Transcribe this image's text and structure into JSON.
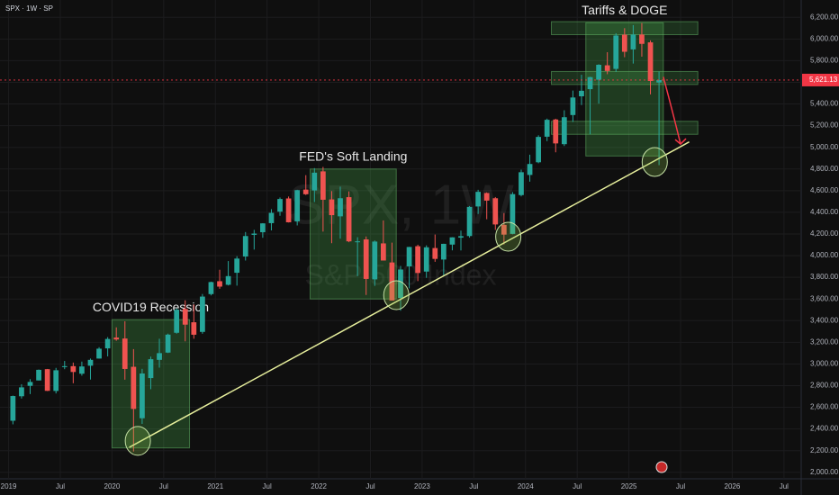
{
  "chart_data": {
    "type": "candlestick",
    "title": "SPX · 1W · SP",
    "watermark": "SPX, 1W",
    "watermark_subtitle": "S&P 500 Index",
    "x": [
      "2019-01",
      "2019-02",
      "2019-03",
      "2019-04",
      "2019-05",
      "2019-06",
      "2019-07",
      "2019-08",
      "2019-09",
      "2019-10",
      "2019-11",
      "2019-12",
      "2020-01",
      "2020-02",
      "2020-03",
      "2020-04",
      "2020-05",
      "2020-06",
      "2020-07",
      "2020-08",
      "2020-09",
      "2020-10",
      "2020-11",
      "2020-12",
      "2021-01",
      "2021-02",
      "2021-03",
      "2021-04",
      "2021-05",
      "2021-06",
      "2021-07",
      "2021-08",
      "2021-09",
      "2021-10",
      "2021-11",
      "2021-12",
      "2022-01",
      "2022-02",
      "2022-03",
      "2022-04",
      "2022-05",
      "2022-06",
      "2022-07",
      "2022-08",
      "2022-09",
      "2022-10",
      "2022-11",
      "2022-12",
      "2023-01",
      "2023-02",
      "2023-03",
      "2023-04",
      "2023-05",
      "2023-06",
      "2023-07",
      "2023-08",
      "2023-09",
      "2023-10",
      "2023-11",
      "2023-12",
      "2024-01",
      "2024-02",
      "2024-03",
      "2024-04",
      "2024-05",
      "2024-06",
      "2024-07",
      "2024-08",
      "2024-09",
      "2024-10",
      "2024-11",
      "2024-12",
      "2025-01",
      "2025-02",
      "2025-03",
      "2025-04"
    ],
    "open": [
      2476,
      2702,
      2798,
      2848,
      2952,
      2751,
      2971,
      2980,
      2910,
      2984,
      3050,
      3144,
      3244,
      3235,
      2974,
      2499,
      2870,
      3038,
      3105,
      3288,
      3508,
      3385,
      3296,
      3645,
      3764,
      3731,
      3842,
      3992,
      4192,
      4216,
      4300,
      4406,
      4528,
      4317,
      4610,
      4602,
      4778,
      4519,
      4363,
      4540,
      4130,
      4150,
      3781,
      4113,
      3937,
      3609,
      3901,
      4087,
      3853,
      4070,
      3964,
      4102,
      4166,
      4181,
      4454,
      4578,
      4530,
      4284,
      4201,
      4559,
      4745,
      4862,
      5098,
      5257,
      5029,
      5298,
      5471,
      5537,
      5624,
      5757,
      5724,
      6040,
      5904,
      6041,
      5969,
      5598
    ],
    "high": [
      2708,
      2813,
      2860,
      2949,
      2954,
      2964,
      3028,
      3013,
      3022,
      3050,
      3155,
      3248,
      3338,
      3394,
      3137,
      2955,
      3068,
      3233,
      3280,
      3514,
      3588,
      3550,
      3646,
      3760,
      3870,
      3950,
      3995,
      4218,
      4238,
      4300,
      4429,
      4537,
      4546,
      4608,
      4743,
      4808,
      4819,
      4596,
      4637,
      4593,
      4170,
      4177,
      4140,
      4325,
      4120,
      3905,
      4081,
      4101,
      4095,
      4195,
      4110,
      4170,
      4231,
      4458,
      4608,
      4584,
      4541,
      4393,
      4587,
      4794,
      4932,
      5111,
      5265,
      5264,
      5342,
      5524,
      5670,
      5651,
      5767,
      5878,
      6053,
      6100,
      6128,
      6147,
      5987,
      5700
    ],
    "low": [
      2443,
      2681,
      2722,
      2848,
      2750,
      2728,
      2952,
      2822,
      2892,
      2856,
      3050,
      3070,
      3214,
      2855,
      2192,
      2447,
      2767,
      2966,
      3101,
      3280,
      3209,
      3233,
      3279,
      3633,
      3694,
      3725,
      3723,
      3955,
      4056,
      4165,
      4233,
      4368,
      4306,
      4279,
      4560,
      4495,
      4222,
      4115,
      4157,
      4124,
      3811,
      3637,
      3721,
      3955,
      3585,
      3492,
      3698,
      3765,
      3795,
      3943,
      3809,
      4049,
      4048,
      4166,
      4385,
      4336,
      4238,
      4104,
      4197,
      4547,
      4683,
      4853,
      5057,
      4954,
      5012,
      5234,
      5390,
      5120,
      5403,
      5675,
      5696,
      5832,
      5773,
      5837,
      5489,
      4835
    ],
    "close": [
      2704,
      2784,
      2834,
      2946,
      2752,
      2942,
      2980,
      2926,
      2977,
      3038,
      3141,
      3231,
      3226,
      2954,
      2585,
      2912,
      3044,
      3100,
      3271,
      3500,
      3363,
      3270,
      3622,
      3756,
      3714,
      3811,
      3973,
      4181,
      4204,
      4298,
      4395,
      4523,
      4308,
      4605,
      4567,
      4766,
      4516,
      4374,
      4530,
      4132,
      4132,
      3785,
      4130,
      3955,
      3586,
      3872,
      4080,
      3840,
      4077,
      3970,
      4109,
      4169,
      4180,
      4450,
      4589,
      4508,
      4288,
      4194,
      4568,
      4770,
      4846,
      5096,
      5254,
      5036,
      5278,
      5460,
      5522,
      5648,
      5762,
      5705,
      6032,
      5882,
      6041,
      5955,
      5612,
      5621
    ],
    "up_color": "#26a69a",
    "down_color": "#ef5350",
    "xlim": [
      "2018-12",
      "2026-09"
    ],
    "xticks": [
      {
        "value": "2019-01",
        "label": "2019"
      },
      {
        "value": "2019-07",
        "label": "Jul"
      },
      {
        "value": "2020-01",
        "label": "2020"
      },
      {
        "value": "2020-07",
        "label": "Jul"
      },
      {
        "value": "2021-01",
        "label": "2021"
      },
      {
        "value": "2021-07",
        "label": "Jul"
      },
      {
        "value": "2022-01",
        "label": "2022"
      },
      {
        "value": "2022-07",
        "label": "Jul"
      },
      {
        "value": "2023-01",
        "label": "2023"
      },
      {
        "value": "2023-07",
        "label": "Jul"
      },
      {
        "value": "2024-01",
        "label": "2024"
      },
      {
        "value": "2024-07",
        "label": "Jul"
      },
      {
        "value": "2025-01",
        "label": "2025"
      },
      {
        "value": "2025-07",
        "label": "Jul"
      },
      {
        "value": "2026-01",
        "label": "2026"
      },
      {
        "value": "2026-07",
        "label": "Jul"
      }
    ],
    "ylim": [
      1940,
      6360
    ],
    "yticks": [
      {
        "value": 2000,
        "label": "2,000.00"
      },
      {
        "value": 2200,
        "label": "2,200.00"
      },
      {
        "value": 2400,
        "label": "2,400.00"
      },
      {
        "value": 2600,
        "label": "2,600.00"
      },
      {
        "value": 2800,
        "label": "2,800.00"
      },
      {
        "value": 3000,
        "label": "3,000.00"
      },
      {
        "value": 3200,
        "label": "3,200.00"
      },
      {
        "value": 3400,
        "label": "3,400.00"
      },
      {
        "value": 3600,
        "label": "3,600.00"
      },
      {
        "value": 3800,
        "label": "3,800.00"
      },
      {
        "value": 4000,
        "label": "4,000.00"
      },
      {
        "value": 4200,
        "label": "4,200.00"
      },
      {
        "value": 4400,
        "label": "4,400.00"
      },
      {
        "value": 4600,
        "label": "4,600.00"
      },
      {
        "value": 4800,
        "label": "4,800.00"
      },
      {
        "value": 5000,
        "label": "5,000.00"
      },
      {
        "value": 5200,
        "label": "5,200.00"
      },
      {
        "value": 5400,
        "label": "5,400.00"
      },
      {
        "value": 5600,
        "label": "5,600.00"
      },
      {
        "value": 5800,
        "label": "5,800.00"
      },
      {
        "value": 6000,
        "label": "6,000.00"
      },
      {
        "value": 6200,
        "label": "6,200.00"
      }
    ],
    "grid": true,
    "last_price": {
      "value": 5621.13,
      "label": "5,621.13"
    },
    "zones": [
      {
        "label": "COVID19 Recession",
        "x": [
          "2020-01",
          "2020-10"
        ],
        "y": [
          2225,
          3410
        ]
      },
      {
        "label": "FED's Soft Landing",
        "x": [
          "2021-12",
          "2022-10"
        ],
        "y": [
          3600,
          4800
        ]
      },
      {
        "label": "Tariffs & DOGE",
        "x": [
          "2024-08",
          "2025-05"
        ],
        "y": [
          4920,
          6150
        ]
      }
    ],
    "bands": [
      {
        "x": [
          "2024-04",
          "2025-09"
        ],
        "y": [
          6040,
          6160
        ]
      },
      {
        "x": [
          "2024-04",
          "2025-09"
        ],
        "y": [
          5580,
          5700
        ]
      },
      {
        "x": [
          "2024-04",
          "2025-09"
        ],
        "y": [
          5120,
          5240
        ]
      }
    ],
    "trendline": {
      "x": [
        "2020-03",
        "2025-08"
      ],
      "y": [
        2230,
        5050
      ]
    },
    "touch_points": {
      "x": [
        "2020-04",
        "2022-10",
        "2023-11",
        "2025-04"
      ],
      "y": [
        2290,
        3635,
        4175,
        4865
      ]
    },
    "projection": {
      "x": [
        "2025-05",
        "2025-07"
      ],
      "y": [
        5650,
        5030
      ]
    }
  }
}
